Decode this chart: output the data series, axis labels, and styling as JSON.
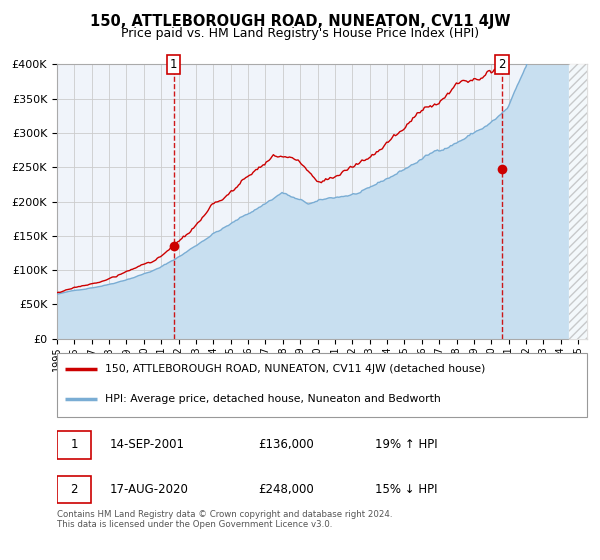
{
  "title": "150, ATTLEBOROUGH ROAD, NUNEATON, CV11 4JW",
  "subtitle": "Price paid vs. HM Land Registry's House Price Index (HPI)",
  "ylim": [
    0,
    400000
  ],
  "yticks": [
    0,
    50000,
    100000,
    150000,
    200000,
    250000,
    300000,
    350000,
    400000
  ],
  "ytick_labels": [
    "£0",
    "£50K",
    "£100K",
    "£150K",
    "£200K",
    "£250K",
    "£300K",
    "£350K",
    "£400K"
  ],
  "xlim_start": 1995.0,
  "xlim_end": 2025.5,
  "xtick_years": [
    1995,
    1996,
    1997,
    1998,
    1999,
    2000,
    2001,
    2002,
    2003,
    2004,
    2005,
    2006,
    2007,
    2008,
    2009,
    2010,
    2011,
    2012,
    2013,
    2014,
    2015,
    2016,
    2017,
    2018,
    2019,
    2020,
    2021,
    2022,
    2023,
    2024,
    2025
  ],
  "sale1_x": 2001.71,
  "sale1_y": 136000,
  "sale1_label": "1",
  "sale1_date": "14-SEP-2001",
  "sale1_price": "£136,000",
  "sale1_hpi": "19% ↑ HPI",
  "sale2_x": 2020.62,
  "sale2_y": 248000,
  "sale2_label": "2",
  "sale2_date": "17-AUG-2020",
  "sale2_price": "£248,000",
  "sale2_hpi": "15% ↓ HPI",
  "red_line_color": "#cc0000",
  "blue_line_color": "#7aadd4",
  "blue_fill_color": "#c8dff0",
  "vline_color": "#cc0000",
  "grid_color": "#cccccc",
  "bg_color": "#f0f4fa",
  "legend_label_red": "150, ATTLEBOROUGH ROAD, NUNEATON, CV11 4JW (detached house)",
  "legend_label_blue": "HPI: Average price, detached house, Nuneaton and Bedworth",
  "footer_text": "Contains HM Land Registry data © Crown copyright and database right 2024.\nThis data is licensed under the Open Government Licence v3.0.",
  "hatch_region_start": 2024.5,
  "title_fontsize": 10.5,
  "subtitle_fontsize": 9
}
